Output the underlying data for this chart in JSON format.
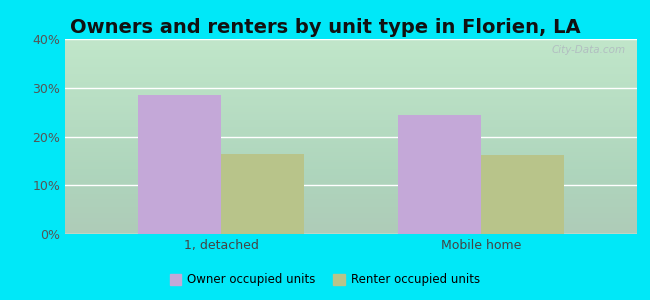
{
  "title": "Owners and renters by unit type in Florien, LA",
  "categories": [
    "1, detached",
    "Mobile home"
  ],
  "owner_values": [
    28.6,
    24.5
  ],
  "renter_values": [
    16.5,
    16.2
  ],
  "owner_color": "#c4a8d8",
  "renter_color": "#b8c48a",
  "background_outer": "#00e8f8",
  "ylim": [
    0,
    40
  ],
  "yticks": [
    0,
    10,
    20,
    30,
    40
  ],
  "ytick_labels": [
    "0%",
    "10%",
    "20%",
    "30%",
    "40%"
  ],
  "bar_width": 0.32,
  "title_fontsize": 14,
  "legend_label_owner": "Owner occupied units",
  "legend_label_renter": "Renter occupied units",
  "watermark": "City-Data.com"
}
